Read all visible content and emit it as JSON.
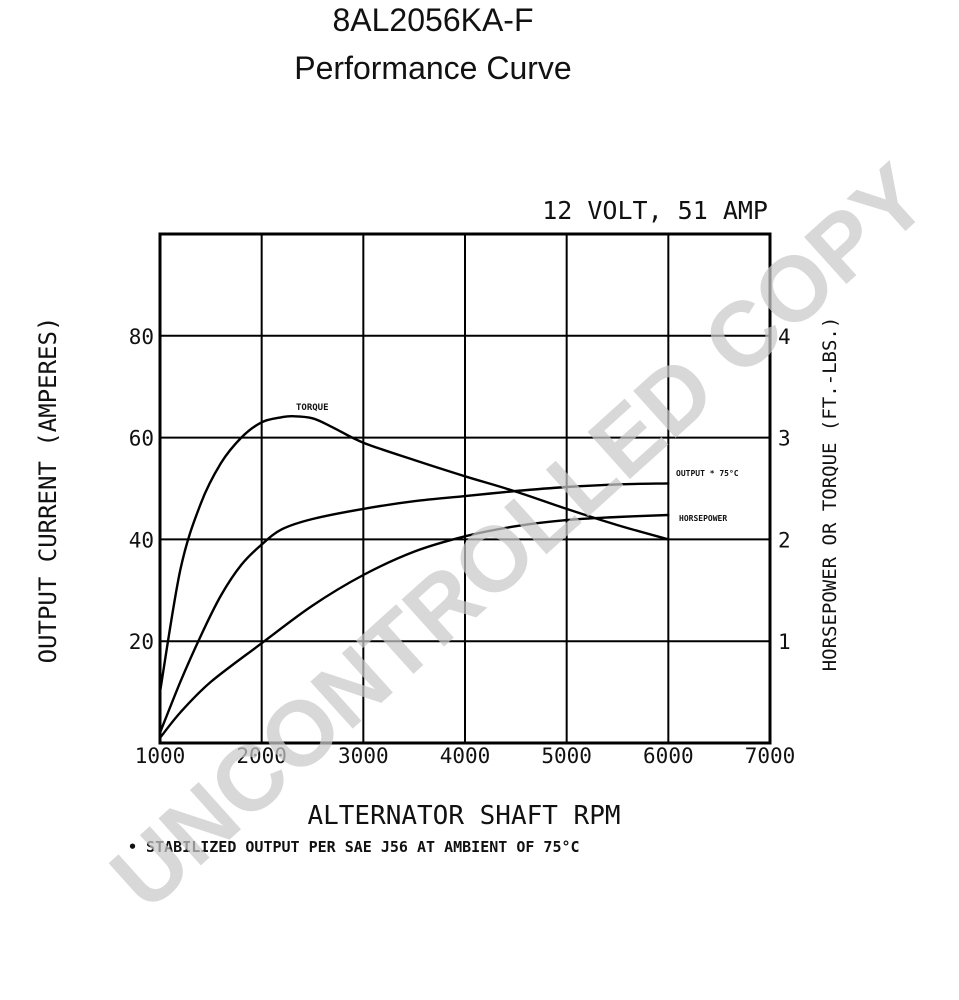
{
  "title_line1": "8AL2056KA-F",
  "title_line2": "Performance Curve",
  "watermark": "UNCONTROLLED COPY",
  "chart_data": {
    "type": "line",
    "rating_label": "12 VOLT, 51 AMP",
    "xlabel": "ALTERNATOR SHAFT RPM",
    "ylabel": "OUTPUT CURRENT (AMPERES)",
    "y2label": "HORSEPOWER OR TORQUE (FT.-LBS.)",
    "footnote": "• STABILIZED OUTPUT PER SAE J56 AT AMBIENT OF 75°C",
    "xlim": [
      1000,
      7000
    ],
    "ylim": [
      0,
      100
    ],
    "y2lim": [
      0,
      5
    ],
    "x_ticks": [
      "1000",
      "2000",
      "3000",
      "4000",
      "5000",
      "6000",
      "7000"
    ],
    "y_ticks": [
      {
        "value": 20,
        "label": "20"
      },
      {
        "value": 40,
        "label": "40"
      },
      {
        "value": 60,
        "label": "60"
      },
      {
        "value": 80,
        "label": "80"
      }
    ],
    "y2_ticks": [
      {
        "value": 1,
        "label": "1"
      },
      {
        "value": 2,
        "label": "2"
      },
      {
        "value": 3,
        "label": "3"
      },
      {
        "value": 4,
        "label": "4"
      }
    ],
    "grid": true,
    "series": [
      {
        "name": "TORQUE",
        "axis": "right",
        "x": [
          1000,
          1200,
          1400,
          1600,
          1800,
          2000,
          2200,
          2300,
          2500,
          2700,
          3000,
          3500,
          4000,
          4500,
          5000,
          5500,
          6000
        ],
        "y": [
          0.5,
          1.7,
          2.35,
          2.75,
          3.0,
          3.15,
          3.2,
          3.21,
          3.19,
          3.1,
          2.95,
          2.78,
          2.62,
          2.47,
          2.3,
          2.14,
          2.0
        ]
      },
      {
        "name": "OUTPUT * 75°C",
        "axis": "left",
        "x": [
          1000,
          1200,
          1400,
          1600,
          1800,
          2000,
          2200,
          2500,
          3000,
          3500,
          4000,
          4500,
          5000,
          5500,
          6000
        ],
        "y": [
          2,
          12,
          21,
          29,
          35,
          39,
          42,
          44,
          46,
          47.5,
          48.5,
          49.5,
          50.3,
          50.8,
          51
        ]
      },
      {
        "name": "HORSEPOWER",
        "axis": "right",
        "x": [
          1000,
          1200,
          1500,
          2000,
          2500,
          3000,
          3500,
          4000,
          4500,
          5000,
          5500,
          6000
        ],
        "y": [
          0.05,
          0.3,
          0.6,
          0.98,
          1.35,
          1.65,
          1.88,
          2.03,
          2.13,
          2.19,
          2.22,
          2.24
        ]
      }
    ]
  }
}
